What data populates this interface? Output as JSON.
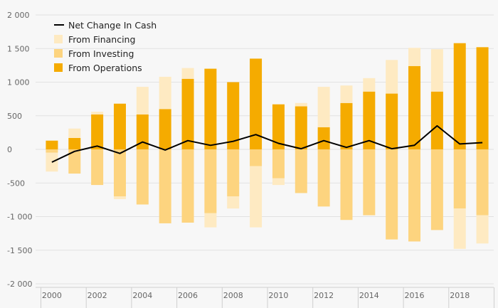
{
  "chart_data": {
    "type": "bar",
    "stacked": true,
    "x": [
      2000,
      2001,
      2002,
      2003,
      2004,
      2005,
      2006,
      2007,
      2008,
      2009,
      2010,
      2011,
      2012,
      2013,
      2014,
      2015,
      2016,
      2017,
      2018,
      2019
    ],
    "x_tick_labels": [
      "2000",
      "2002",
      "2004",
      "2006",
      "2008",
      "2010",
      "2012",
      "2014",
      "2016",
      "2018"
    ],
    "y_tick_labels": [
      "2 000",
      "1 500",
      "1 000",
      "500",
      "0",
      "-500",
      "-1 000",
      "-1 500",
      "-2 000"
    ],
    "ylim": [
      -2000,
      2000
    ],
    "grid": true,
    "legend_position": "top-left",
    "series": [
      {
        "name": "From Operations",
        "color": "#f5ab00",
        "values": [
          130,
          170,
          520,
          680,
          520,
          600,
          1050,
          1200,
          1000,
          1350,
          670,
          640,
          330,
          690,
          860,
          830,
          1240,
          860,
          1580,
          1520
        ]
      },
      {
        "name": "From Investing",
        "color": "#fdd47f",
        "values": [
          -50,
          -360,
          -530,
          -700,
          -820,
          -1100,
          -1090,
          -950,
          -700,
          -250,
          -430,
          -650,
          -850,
          -1050,
          -980,
          -1340,
          -1370,
          -1200,
          -880,
          -980
        ]
      },
      {
        "name": "From Financing",
        "color": "#feeac2",
        "values": [
          -280,
          140,
          40,
          -40,
          410,
          480,
          160,
          -210,
          -180,
          -910,
          -100,
          50,
          600,
          260,
          200,
          500,
          270,
          630,
          -600,
          -420
        ]
      },
      {
        "name": "Net Change In Cash",
        "color": "#000000",
        "type": "line",
        "values": [
          -190,
          -30,
          50,
          -60,
          110,
          -10,
          130,
          60,
          120,
          220,
          90,
          10,
          130,
          30,
          130,
          10,
          60,
          350,
          80,
          100
        ]
      }
    ]
  }
}
